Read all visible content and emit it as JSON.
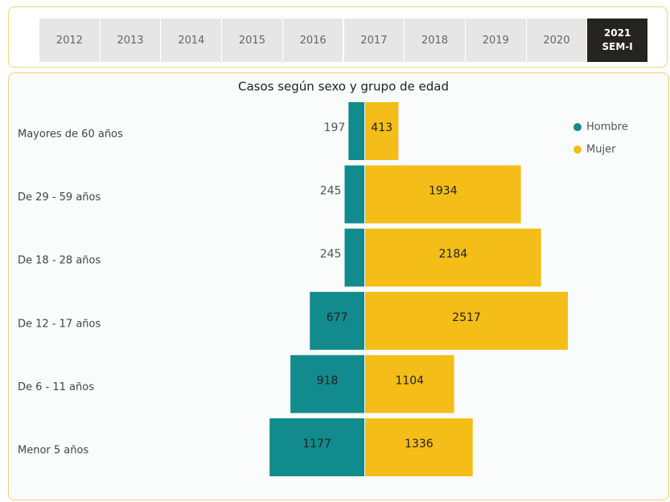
{
  "tabs": [
    "2012",
    "2013",
    "2014",
    "2015",
    "2016",
    "2017",
    "2018",
    "2019",
    "2020",
    "2021\nSEM-I"
  ],
  "chart_data": {
    "type": "pyramid",
    "title": "Casos según sexo y grupo de edad",
    "categories": [
      "Mayores de 60 años",
      "De 29 - 59 años",
      "De 18 - 28 años",
      "De 12 - 17 años",
      "De 6 - 11 años",
      "Menor 5 años"
    ],
    "series": [
      {
        "name": "Hombre",
        "color": "#118b8d",
        "values": [
          197,
          245,
          245,
          677,
          918,
          1177
        ]
      },
      {
        "name": "Mujer",
        "color": "#f4bd17",
        "values": [
          413,
          1934,
          2184,
          2517,
          1104,
          1336
        ]
      }
    ],
    "legend": "top-right"
  }
}
